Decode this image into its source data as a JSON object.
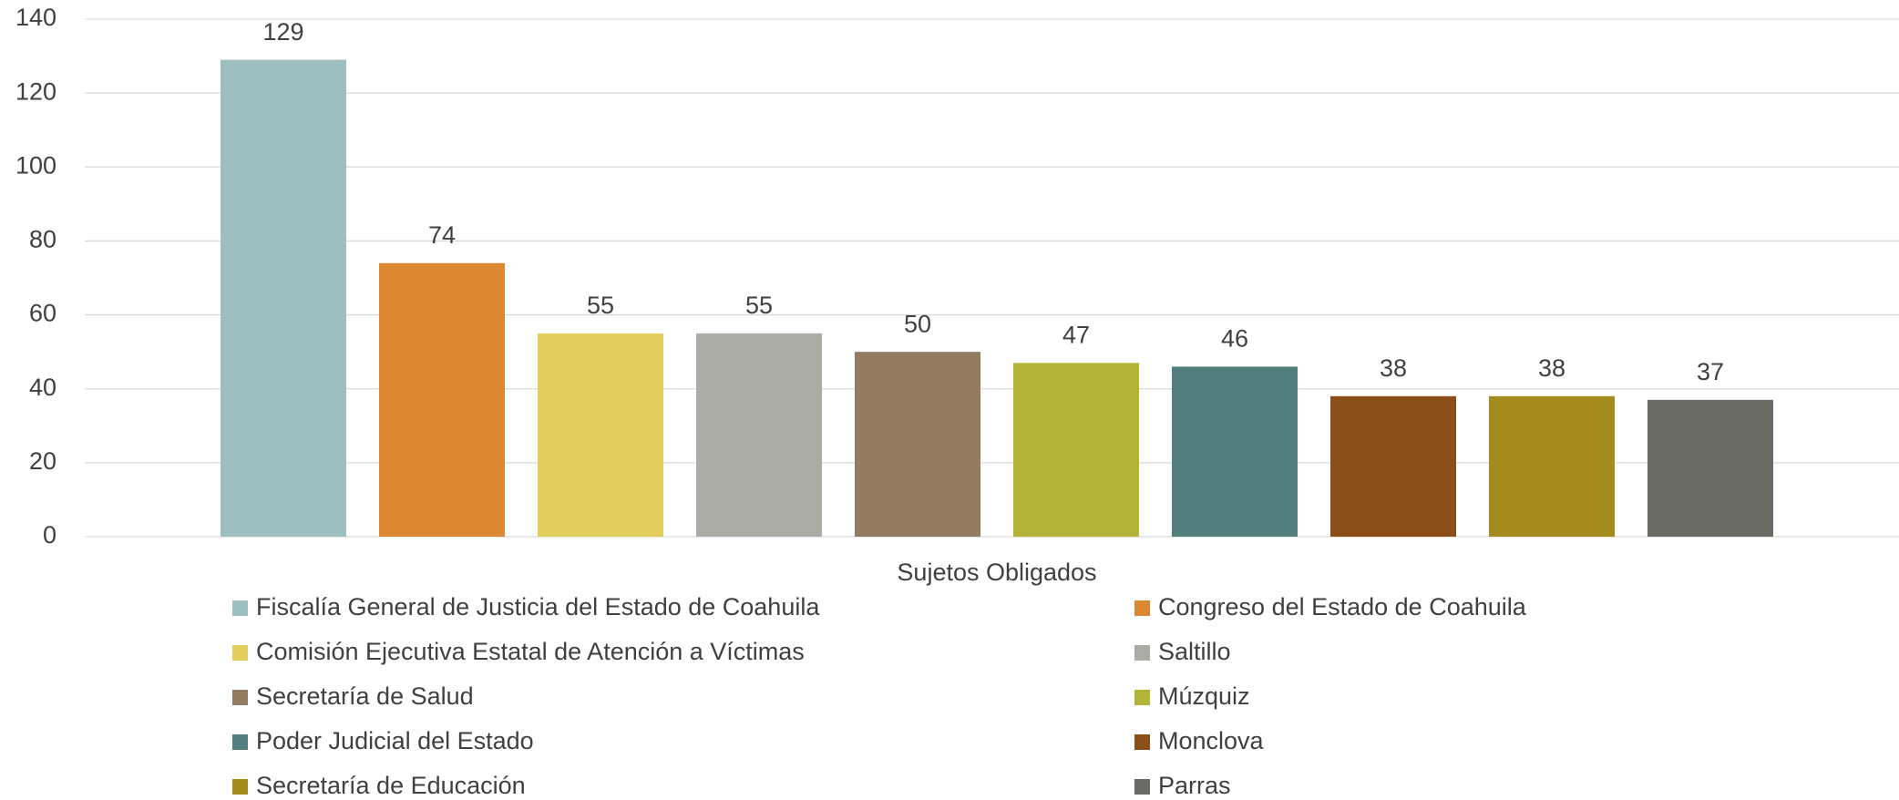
{
  "chart_data": {
    "type": "bar",
    "categories": [
      "Sujetos Obligados"
    ],
    "series": [
      {
        "name": "Fiscalía General de Justicia del Estado de Coahuila",
        "color": "#9ebfbf",
        "values": [
          129
        ]
      },
      {
        "name": "Congreso del Estado de Coahuila",
        "color": "#dc8832",
        "values": [
          74
        ]
      },
      {
        "name": "Comisión Ejecutiva Estatal de Atención a Víctimas",
        "color": "#e3cd5c",
        "values": [
          55
        ]
      },
      {
        "name": "Saltillo",
        "color": "#acaca6",
        "values": [
          55
        ]
      },
      {
        "name": "Secretaría de Salud",
        "color": "#917c62",
        "values": [
          50
        ]
      },
      {
        "name": "Múzquiz",
        "color": "#b3b337",
        "values": [
          47
        ]
      },
      {
        "name": "Poder Judicial del Estado",
        "color": "#527f7d",
        "values": [
          46
        ]
      },
      {
        "name": "Monclova",
        "color": "#8a4f18",
        "values": [
          38
        ]
      },
      {
        "name": "Secretaría de Educación",
        "color": "#a38b1e",
        "values": [
          38
        ]
      },
      {
        "name": "Parras",
        "color": "#696a63",
        "values": [
          37
        ]
      }
    ],
    "ylim": [
      0,
      140
    ],
    "yticks": [
      0,
      20,
      40,
      60,
      80,
      100,
      120,
      140
    ],
    "grid": true,
    "legend": "bottom",
    "data_labels": true
  }
}
